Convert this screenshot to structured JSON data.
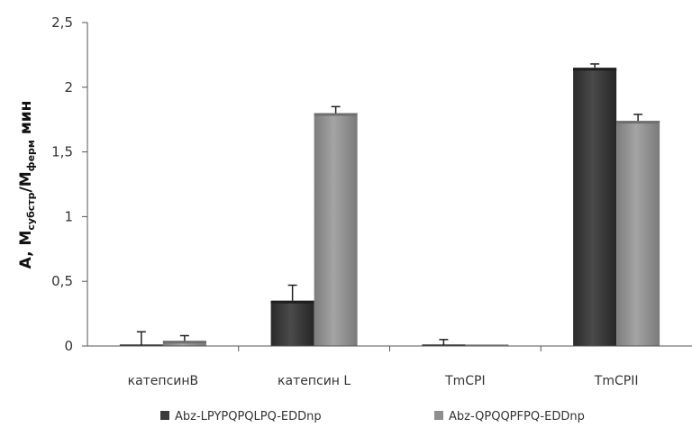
{
  "chart_data": {
    "type": "bar",
    "categories": [
      "катепсинВ",
      "катепсин L",
      "TmCPI",
      "TmCPII"
    ],
    "series": [
      {
        "name": "Abz-LPYPQPQLPQ-EDDnp",
        "values": [
          0.0,
          0.35,
          0.0,
          2.15
        ],
        "errors": [
          0.11,
          0.12,
          0.05,
          0.03
        ],
        "color": "#3a3a3a"
      },
      {
        "name": "Abz-QPQQPFPQ-EDDnp",
        "values": [
          0.04,
          1.8,
          0.0,
          1.74
        ],
        "errors": [
          0.04,
          0.05,
          0.0,
          0.05
        ],
        "color": "#8e8e8e"
      }
    ],
    "ylabel": {
      "lead": "A, M",
      "sub1": "субстр",
      "mid": "/M",
      "sub2": "ферм",
      "tail": " мин"
    },
    "ylim": [
      0,
      2.5
    ],
    "yticks": [
      "0",
      "0,5",
      "1",
      "1,5",
      "2",
      "2,5"
    ],
    "ytick_values": [
      0,
      0.5,
      1,
      1.5,
      2,
      2.5
    ],
    "grid": false,
    "legend_position": "bottom"
  }
}
